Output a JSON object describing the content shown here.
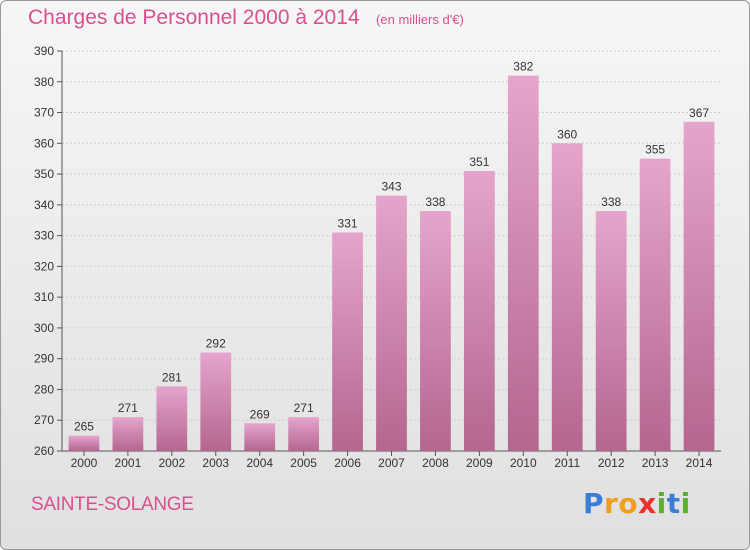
{
  "title": "Charges de Personnel 2000 à 2014",
  "unit": "(en milliers d'€)",
  "city": "SAINTE-SOLANGE",
  "logo": {
    "text": "Proxiti",
    "letters": [
      "P",
      "r",
      "o",
      "x",
      "i",
      "t",
      "i"
    ],
    "colors": [
      "#3a7fd5",
      "#f0a020",
      "#f0a020",
      "#e8302c",
      "#5cb030",
      "#3a7fd5",
      "#5cb030"
    ]
  },
  "colors": {
    "title": "#d94f8f",
    "bar_top": "#e4a5cc",
    "bar_bottom": "#b4668f"
  },
  "chart_data": {
    "type": "bar",
    "title": "Charges de Personnel 2000 à 2014",
    "subtitle": "(en milliers d'€)",
    "categories": [
      "2000",
      "2001",
      "2002",
      "2003",
      "2004",
      "2005",
      "2006",
      "2007",
      "2008",
      "2009",
      "2010",
      "2011",
      "2012",
      "2013",
      "2014"
    ],
    "values": [
      265,
      271,
      281,
      292,
      269,
      271,
      331,
      343,
      338,
      351,
      382,
      360,
      338,
      355,
      367
    ],
    "ylim": [
      260,
      390
    ],
    "yticks": [
      260,
      270,
      280,
      290,
      300,
      310,
      320,
      330,
      340,
      350,
      360,
      370,
      380,
      390
    ],
    "grid": true,
    "xlabel": "",
    "ylabel": ""
  }
}
